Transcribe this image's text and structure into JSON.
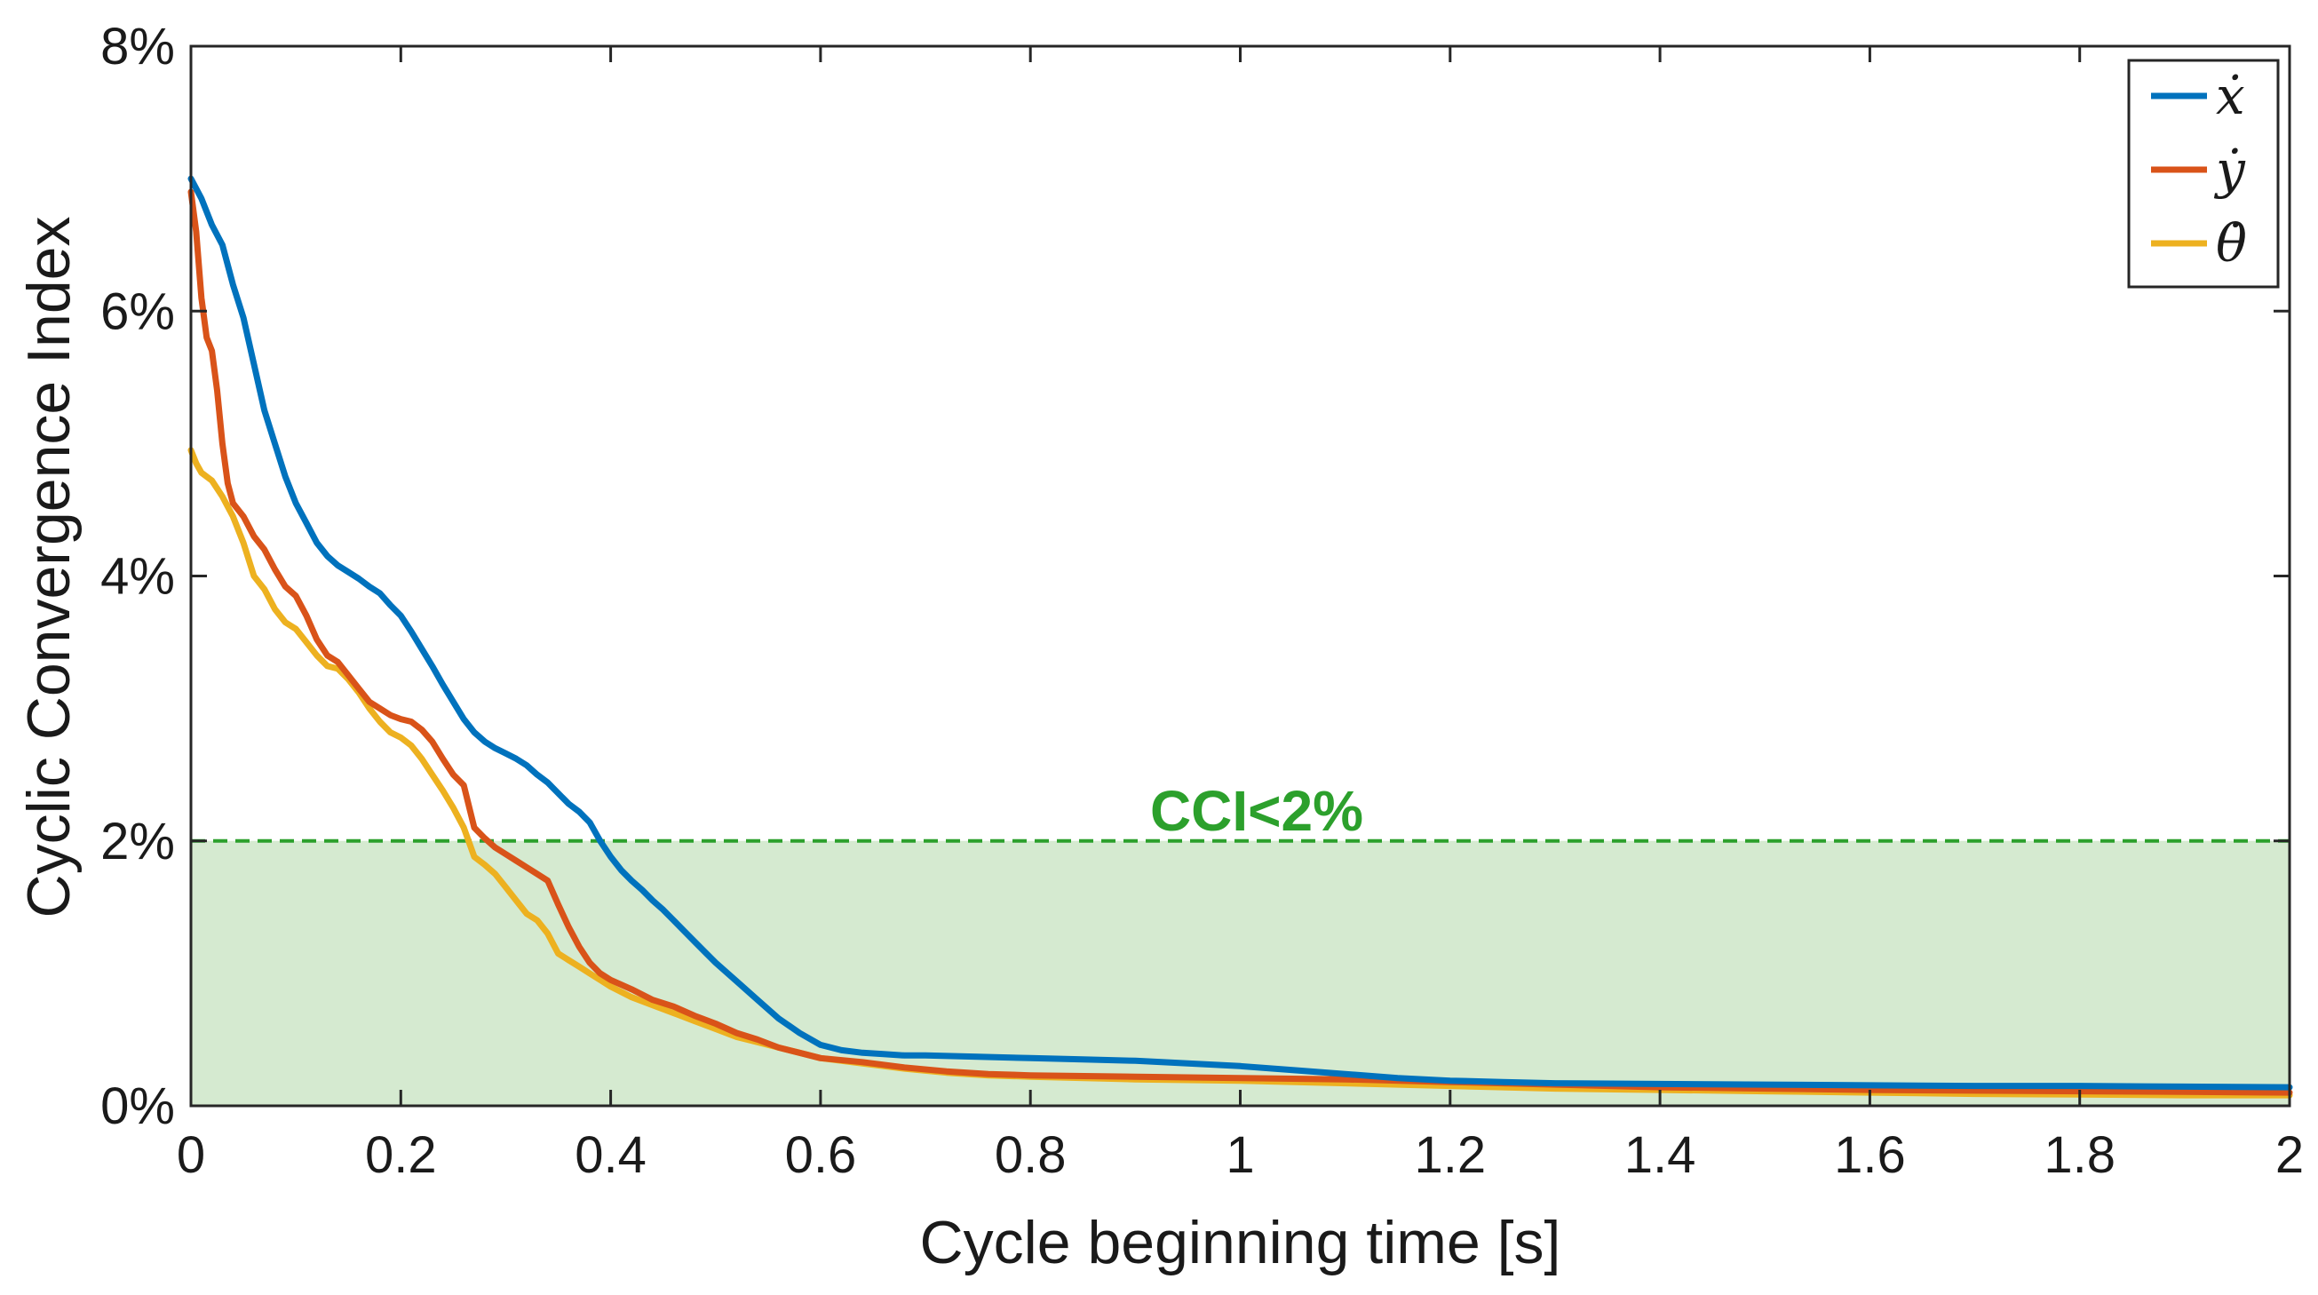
{
  "chart_data": {
    "type": "line",
    "xlabel": "Cycle beginning time [s]",
    "ylabel": "Cyclic Convergence Index",
    "xlim": [
      0,
      2
    ],
    "ylim": [
      0,
      8
    ],
    "x_ticks": [
      0,
      0.2,
      0.4,
      0.6,
      0.8,
      1,
      1.2,
      1.4,
      1.6,
      1.8,
      2
    ],
    "x_tick_labels": [
      "0",
      "0.2",
      "0.4",
      "0.6",
      "0.8",
      "1",
      "1.2",
      "1.4",
      "1.6",
      "1.8",
      "2"
    ],
    "y_ticks": [
      0,
      2,
      4,
      6,
      8
    ],
    "y_tick_labels": [
      "0%",
      "2%",
      "4%",
      "6%",
      "8%"
    ],
    "grid": false,
    "legend_position": "top-right",
    "threshold": {
      "value": 2,
      "label": "CCI<2%",
      "color": "#2ca02c",
      "fill": "#d5ead0"
    },
    "series": [
      {
        "name": "ẋ",
        "color": "#0072BD",
        "x": [
          0,
          0.01,
          0.02,
          0.03,
          0.04,
          0.05,
          0.06,
          0.07,
          0.08,
          0.09,
          0.1,
          0.11,
          0.12,
          0.13,
          0.14,
          0.15,
          0.16,
          0.17,
          0.18,
          0.19,
          0.2,
          0.21,
          0.22,
          0.23,
          0.24,
          0.25,
          0.26,
          0.27,
          0.28,
          0.29,
          0.3,
          0.31,
          0.32,
          0.33,
          0.34,
          0.35,
          0.36,
          0.37,
          0.38,
          0.39,
          0.4,
          0.41,
          0.42,
          0.43,
          0.44,
          0.45,
          0.46,
          0.47,
          0.48,
          0.49,
          0.5,
          0.52,
          0.54,
          0.56,
          0.58,
          0.6,
          0.62,
          0.64,
          0.66,
          0.68,
          0.7,
          0.75,
          0.8,
          0.85,
          0.9,
          0.95,
          1.0,
          1.05,
          1.1,
          1.15,
          1.2,
          1.25,
          1.3,
          1.4,
          1.5,
          1.6,
          1.7,
          1.8,
          1.9,
          2.0
        ],
        "values": [
          7.0,
          6.85,
          6.65,
          6.5,
          6.2,
          5.95,
          5.6,
          5.25,
          5.0,
          4.75,
          4.55,
          4.4,
          4.25,
          4.15,
          4.08,
          4.03,
          3.98,
          3.92,
          3.87,
          3.78,
          3.7,
          3.58,
          3.45,
          3.32,
          3.18,
          3.05,
          2.92,
          2.82,
          2.75,
          2.7,
          2.66,
          2.62,
          2.57,
          2.5,
          2.44,
          2.36,
          2.28,
          2.22,
          2.14,
          2.0,
          1.88,
          1.78,
          1.7,
          1.63,
          1.55,
          1.48,
          1.4,
          1.32,
          1.24,
          1.16,
          1.08,
          0.94,
          0.8,
          0.66,
          0.55,
          0.46,
          0.42,
          0.4,
          0.39,
          0.38,
          0.38,
          0.37,
          0.36,
          0.35,
          0.34,
          0.32,
          0.3,
          0.27,
          0.24,
          0.21,
          0.19,
          0.18,
          0.17,
          0.165,
          0.16,
          0.155,
          0.15,
          0.15,
          0.145,
          0.14
        ]
      },
      {
        "name": "ẏ",
        "color": "#D95319",
        "x": [
          0,
          0.005,
          0.01,
          0.015,
          0.02,
          0.025,
          0.03,
          0.035,
          0.04,
          0.05,
          0.06,
          0.07,
          0.08,
          0.09,
          0.1,
          0.11,
          0.12,
          0.13,
          0.14,
          0.15,
          0.16,
          0.17,
          0.18,
          0.19,
          0.2,
          0.21,
          0.22,
          0.23,
          0.24,
          0.25,
          0.26,
          0.27,
          0.28,
          0.29,
          0.3,
          0.31,
          0.32,
          0.33,
          0.34,
          0.35,
          0.36,
          0.37,
          0.38,
          0.39,
          0.4,
          0.42,
          0.44,
          0.46,
          0.48,
          0.5,
          0.52,
          0.54,
          0.56,
          0.58,
          0.6,
          0.64,
          0.68,
          0.72,
          0.76,
          0.8,
          0.9,
          1.0,
          1.1,
          1.2,
          1.3,
          1.4,
          1.5,
          1.6,
          1.7,
          1.8,
          1.9,
          2.0
        ],
        "values": [
          6.9,
          6.6,
          6.1,
          5.8,
          5.7,
          5.4,
          5.0,
          4.7,
          4.55,
          4.45,
          4.3,
          4.2,
          4.05,
          3.92,
          3.85,
          3.7,
          3.52,
          3.4,
          3.35,
          3.25,
          3.15,
          3.05,
          3.0,
          2.95,
          2.92,
          2.9,
          2.84,
          2.75,
          2.62,
          2.5,
          2.42,
          2.1,
          2.02,
          1.95,
          1.9,
          1.85,
          1.8,
          1.75,
          1.7,
          1.52,
          1.35,
          1.2,
          1.08,
          1.0,
          0.95,
          0.88,
          0.8,
          0.75,
          0.68,
          0.62,
          0.55,
          0.5,
          0.44,
          0.4,
          0.36,
          0.33,
          0.29,
          0.26,
          0.24,
          0.23,
          0.22,
          0.21,
          0.2,
          0.18,
          0.16,
          0.14,
          0.13,
          0.12,
          0.115,
          0.11,
          0.105,
          0.1
        ]
      },
      {
        "name": "θ̇",
        "color": "#EDB120",
        "x": [
          0,
          0.005,
          0.01,
          0.02,
          0.03,
          0.04,
          0.05,
          0.06,
          0.07,
          0.08,
          0.09,
          0.1,
          0.11,
          0.12,
          0.13,
          0.14,
          0.15,
          0.16,
          0.17,
          0.18,
          0.19,
          0.2,
          0.21,
          0.22,
          0.23,
          0.24,
          0.25,
          0.26,
          0.27,
          0.28,
          0.29,
          0.3,
          0.31,
          0.32,
          0.33,
          0.34,
          0.35,
          0.36,
          0.37,
          0.38,
          0.39,
          0.4,
          0.42,
          0.44,
          0.46,
          0.48,
          0.5,
          0.52,
          0.54,
          0.56,
          0.58,
          0.6,
          0.64,
          0.68,
          0.72,
          0.76,
          0.8,
          0.9,
          1.0,
          1.1,
          1.2,
          1.3,
          1.4,
          1.5,
          1.6,
          1.7,
          1.8,
          1.9,
          2.0
        ],
        "values": [
          4.95,
          4.85,
          4.78,
          4.72,
          4.6,
          4.45,
          4.25,
          4.0,
          3.9,
          3.75,
          3.65,
          3.6,
          3.5,
          3.4,
          3.32,
          3.3,
          3.22,
          3.12,
          3.0,
          2.9,
          2.82,
          2.78,
          2.72,
          2.62,
          2.5,
          2.38,
          2.25,
          2.1,
          1.88,
          1.82,
          1.75,
          1.65,
          1.55,
          1.45,
          1.4,
          1.3,
          1.15,
          1.1,
          1.05,
          1.0,
          0.95,
          0.9,
          0.82,
          0.76,
          0.7,
          0.64,
          0.58,
          0.52,
          0.48,
          0.44,
          0.4,
          0.36,
          0.32,
          0.28,
          0.25,
          0.23,
          0.22,
          0.2,
          0.19,
          0.17,
          0.15,
          0.13,
          0.12,
          0.11,
          0.1,
          0.09,
          0.085,
          0.08,
          0.08
        ]
      }
    ]
  }
}
